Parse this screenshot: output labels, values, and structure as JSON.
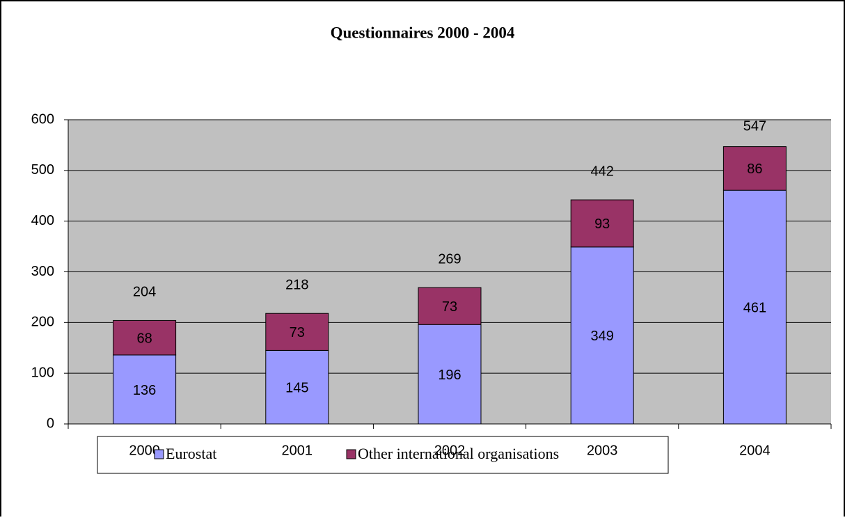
{
  "chart_data": {
    "type": "stacked-bar",
    "title": "Questionnaires 2000 - 2004",
    "categories": [
      "2000",
      "2001",
      "2002",
      "2003",
      "2004"
    ],
    "series": [
      {
        "name": "Eurostat",
        "color": "#9999ff",
        "values": [
          136,
          145,
          196,
          349,
          461
        ]
      },
      {
        "name": "Other international organisations",
        "color": "#993366",
        "values": [
          68,
          73,
          73,
          93,
          86
        ]
      }
    ],
    "totals": [
      204,
      218,
      269,
      442,
      547
    ],
    "ylim": [
      0,
      600
    ],
    "yticks": [
      0,
      100,
      200,
      300,
      400,
      500,
      600
    ],
    "grid": true,
    "plot_background": "#c0c0c0"
  }
}
